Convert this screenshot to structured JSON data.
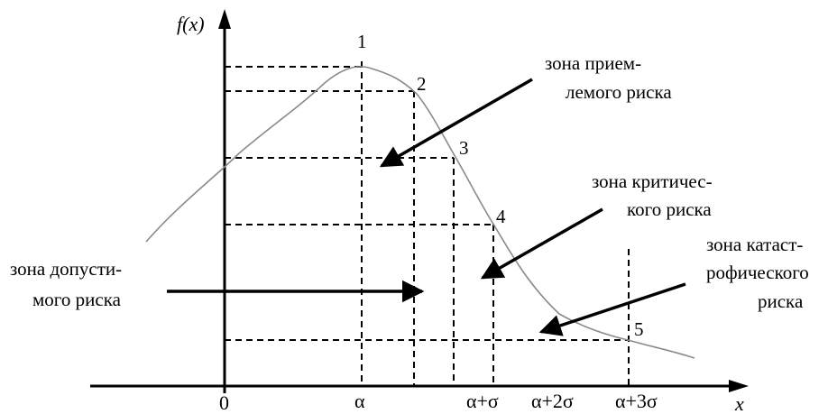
{
  "axes": {
    "y_label": "f(x)",
    "x_label": "x",
    "origin_label": "0",
    "x_ticks": [
      "α",
      "α+σ",
      "α+2σ",
      "α+3σ"
    ]
  },
  "points": [
    "1",
    "2",
    "3",
    "4",
    "5"
  ],
  "zones": {
    "acceptable": [
      "зона прием-",
      "лемого риска"
    ],
    "critical": [
      "зона критичес-",
      "кого риска"
    ],
    "permissible": [
      "зона допусти-",
      "мого риска"
    ],
    "catastrophic": [
      "зона катаст-",
      "рофического",
      "риска"
    ]
  },
  "colors": {
    "curve": "#8a8a8a",
    "ink": "#000000"
  }
}
